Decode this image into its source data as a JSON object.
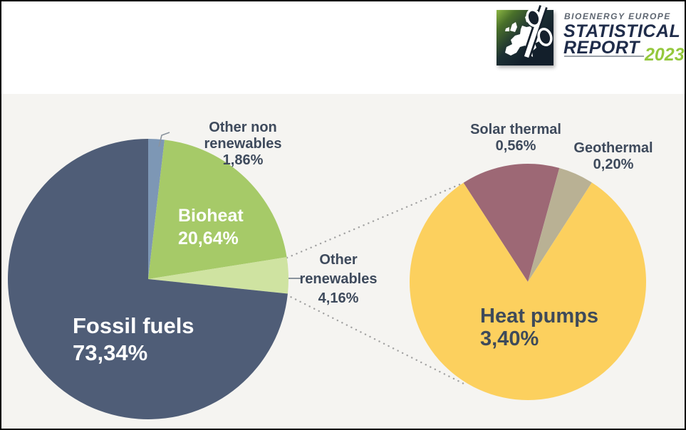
{
  "logo": {
    "brand_line": "BIOENERGY EUROPE",
    "title_line1": "STATISTICAL",
    "title_line2": "REPORT",
    "year": "2023",
    "icon": "percent-over-europe-map-icon",
    "colors": {
      "brand": "#5d6570",
      "title": "#1f2c4a",
      "year": "#94c83d",
      "square_dark": "#131f2b",
      "square_green": "#8cb643"
    }
  },
  "colors": {
    "page_bg": "#ffffff",
    "chart_bg": "#f5f4f1",
    "outside_label_text": "#3e4a5c",
    "inside_label_light": "#ffffff",
    "connector_dots": "#a3a3a3",
    "leader_line": "#8a939d",
    "border": "#000000"
  },
  "chart_data": [
    {
      "type": "pie",
      "name": "heat-market-share-main",
      "start_angle_deg": 0,
      "direction": "clockwise",
      "legend_position": "none",
      "slices": [
        {
          "label": "Other non renewables",
          "value": 1.86,
          "display": "1,86%",
          "color": "#7d97b5",
          "label_placement": "outside-top"
        },
        {
          "label": "Bioheat",
          "value": 20.64,
          "display": "20,64%",
          "color": "#a6ca68",
          "label_placement": "inside"
        },
        {
          "label": "Other renewables",
          "value": 4.16,
          "display": "4,16%",
          "color": "#cfe3a1",
          "label_placement": "outside-right"
        },
        {
          "label": "Fossil fuels",
          "value": 73.34,
          "display": "73,34%",
          "color": "#4f5d77",
          "label_placement": "inside"
        }
      ]
    },
    {
      "type": "pie",
      "name": "other-renewables-detail",
      "note": "zoom detail of the Other renewables 4,16% slice",
      "start_angle_deg": -33,
      "direction": "clockwise",
      "legend_position": "none",
      "slices": [
        {
          "label": "Solar thermal",
          "value": 0.56,
          "display": "0,56%",
          "color": "#9d6875",
          "label_placement": "outside-top"
        },
        {
          "label": "Geothermal",
          "value": 0.2,
          "display": "0,20%",
          "color": "#b9b194",
          "label_placement": "outside-top"
        },
        {
          "label": "Heat pumps",
          "value": 3.4,
          "display": "3,40%",
          "color": "#fcd05e",
          "label_placement": "inside"
        }
      ]
    }
  ]
}
